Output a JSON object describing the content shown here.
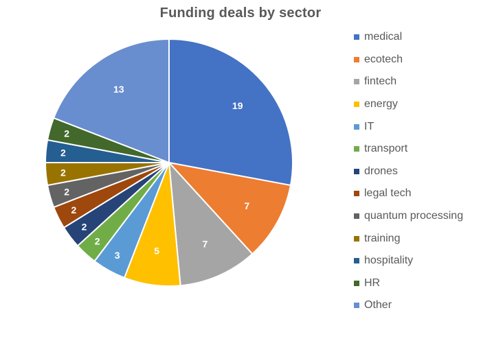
{
  "chart_data": {
    "type": "pie",
    "title": "Funding deals by sector",
    "legend_position": "right",
    "slices": [
      {
        "label": "medical",
        "value": 19,
        "color": "#4472C4"
      },
      {
        "label": "ecotech",
        "value": 7,
        "color": "#ED7D31"
      },
      {
        "label": "fintech",
        "value": 7,
        "color": "#A5A5A5"
      },
      {
        "label": "energy",
        "value": 5,
        "color": "#FFC000"
      },
      {
        "label": "IT",
        "value": 3,
        "color": "#5B9BD5"
      },
      {
        "label": "transport",
        "value": 2,
        "color": "#70AD47"
      },
      {
        "label": "drones",
        "value": 2,
        "color": "#264478"
      },
      {
        "label": "legal tech",
        "value": 2,
        "color": "#9E480E"
      },
      {
        "label": "quantum processing",
        "value": 2,
        "color": "#636363"
      },
      {
        "label": "training",
        "value": 2,
        "color": "#997300"
      },
      {
        "label": "hospitality",
        "value": 2,
        "color": "#255E91"
      },
      {
        "label": "HR",
        "value": 2,
        "color": "#43682B"
      },
      {
        "label": "Other",
        "value": 13,
        "color": "#698ED0"
      }
    ]
  }
}
